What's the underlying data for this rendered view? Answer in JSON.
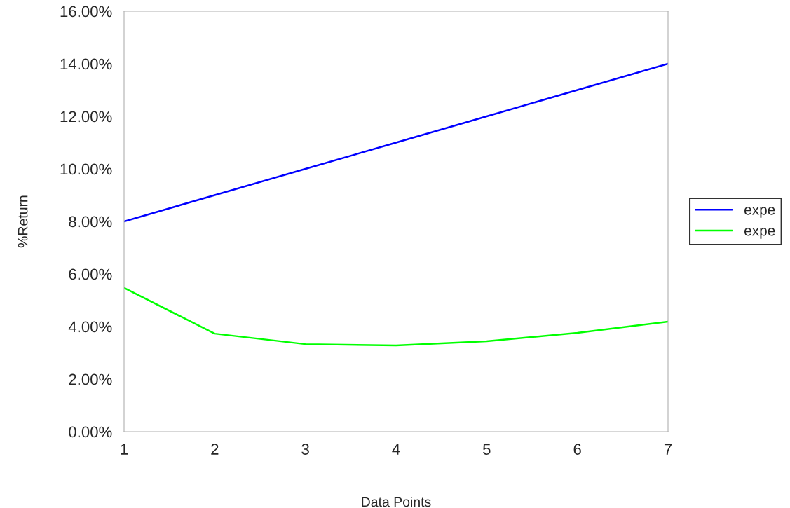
{
  "chart_data": {
    "type": "line",
    "xlabel": "Data Points",
    "ylabel": "%Return",
    "x": [
      1,
      2,
      3,
      4,
      5,
      6,
      7
    ],
    "series": [
      {
        "name": "expe",
        "color": "#0000ff",
        "values": [
          8.0,
          9.0,
          10.0,
          11.0,
          12.0,
          13.0,
          14.0
        ]
      },
      {
        "name": "expe",
        "color": "#00ff00",
        "values": [
          5.47,
          3.73,
          3.33,
          3.28,
          3.44,
          3.76,
          4.19
        ]
      }
    ],
    "xlim": [
      1,
      7
    ],
    "xticks": [
      1,
      2,
      3,
      4,
      5,
      6,
      7
    ],
    "ylim": [
      0,
      16
    ],
    "yticks": [
      {
        "value": 0,
        "label": "0.00%"
      },
      {
        "value": 2,
        "label": "2.00%"
      },
      {
        "value": 4,
        "label": "4.00%"
      },
      {
        "value": 6,
        "label": "6.00%"
      },
      {
        "value": 8,
        "label": "8.00%"
      },
      {
        "value": 10,
        "label": "10.00%"
      },
      {
        "value": 12,
        "label": "12.00%"
      },
      {
        "value": 14,
        "label": "14.00%"
      },
      {
        "value": 16,
        "label": "16.00%"
      }
    ],
    "grid": false,
    "legend": "right",
    "marker": "none",
    "line_style": "solid"
  }
}
